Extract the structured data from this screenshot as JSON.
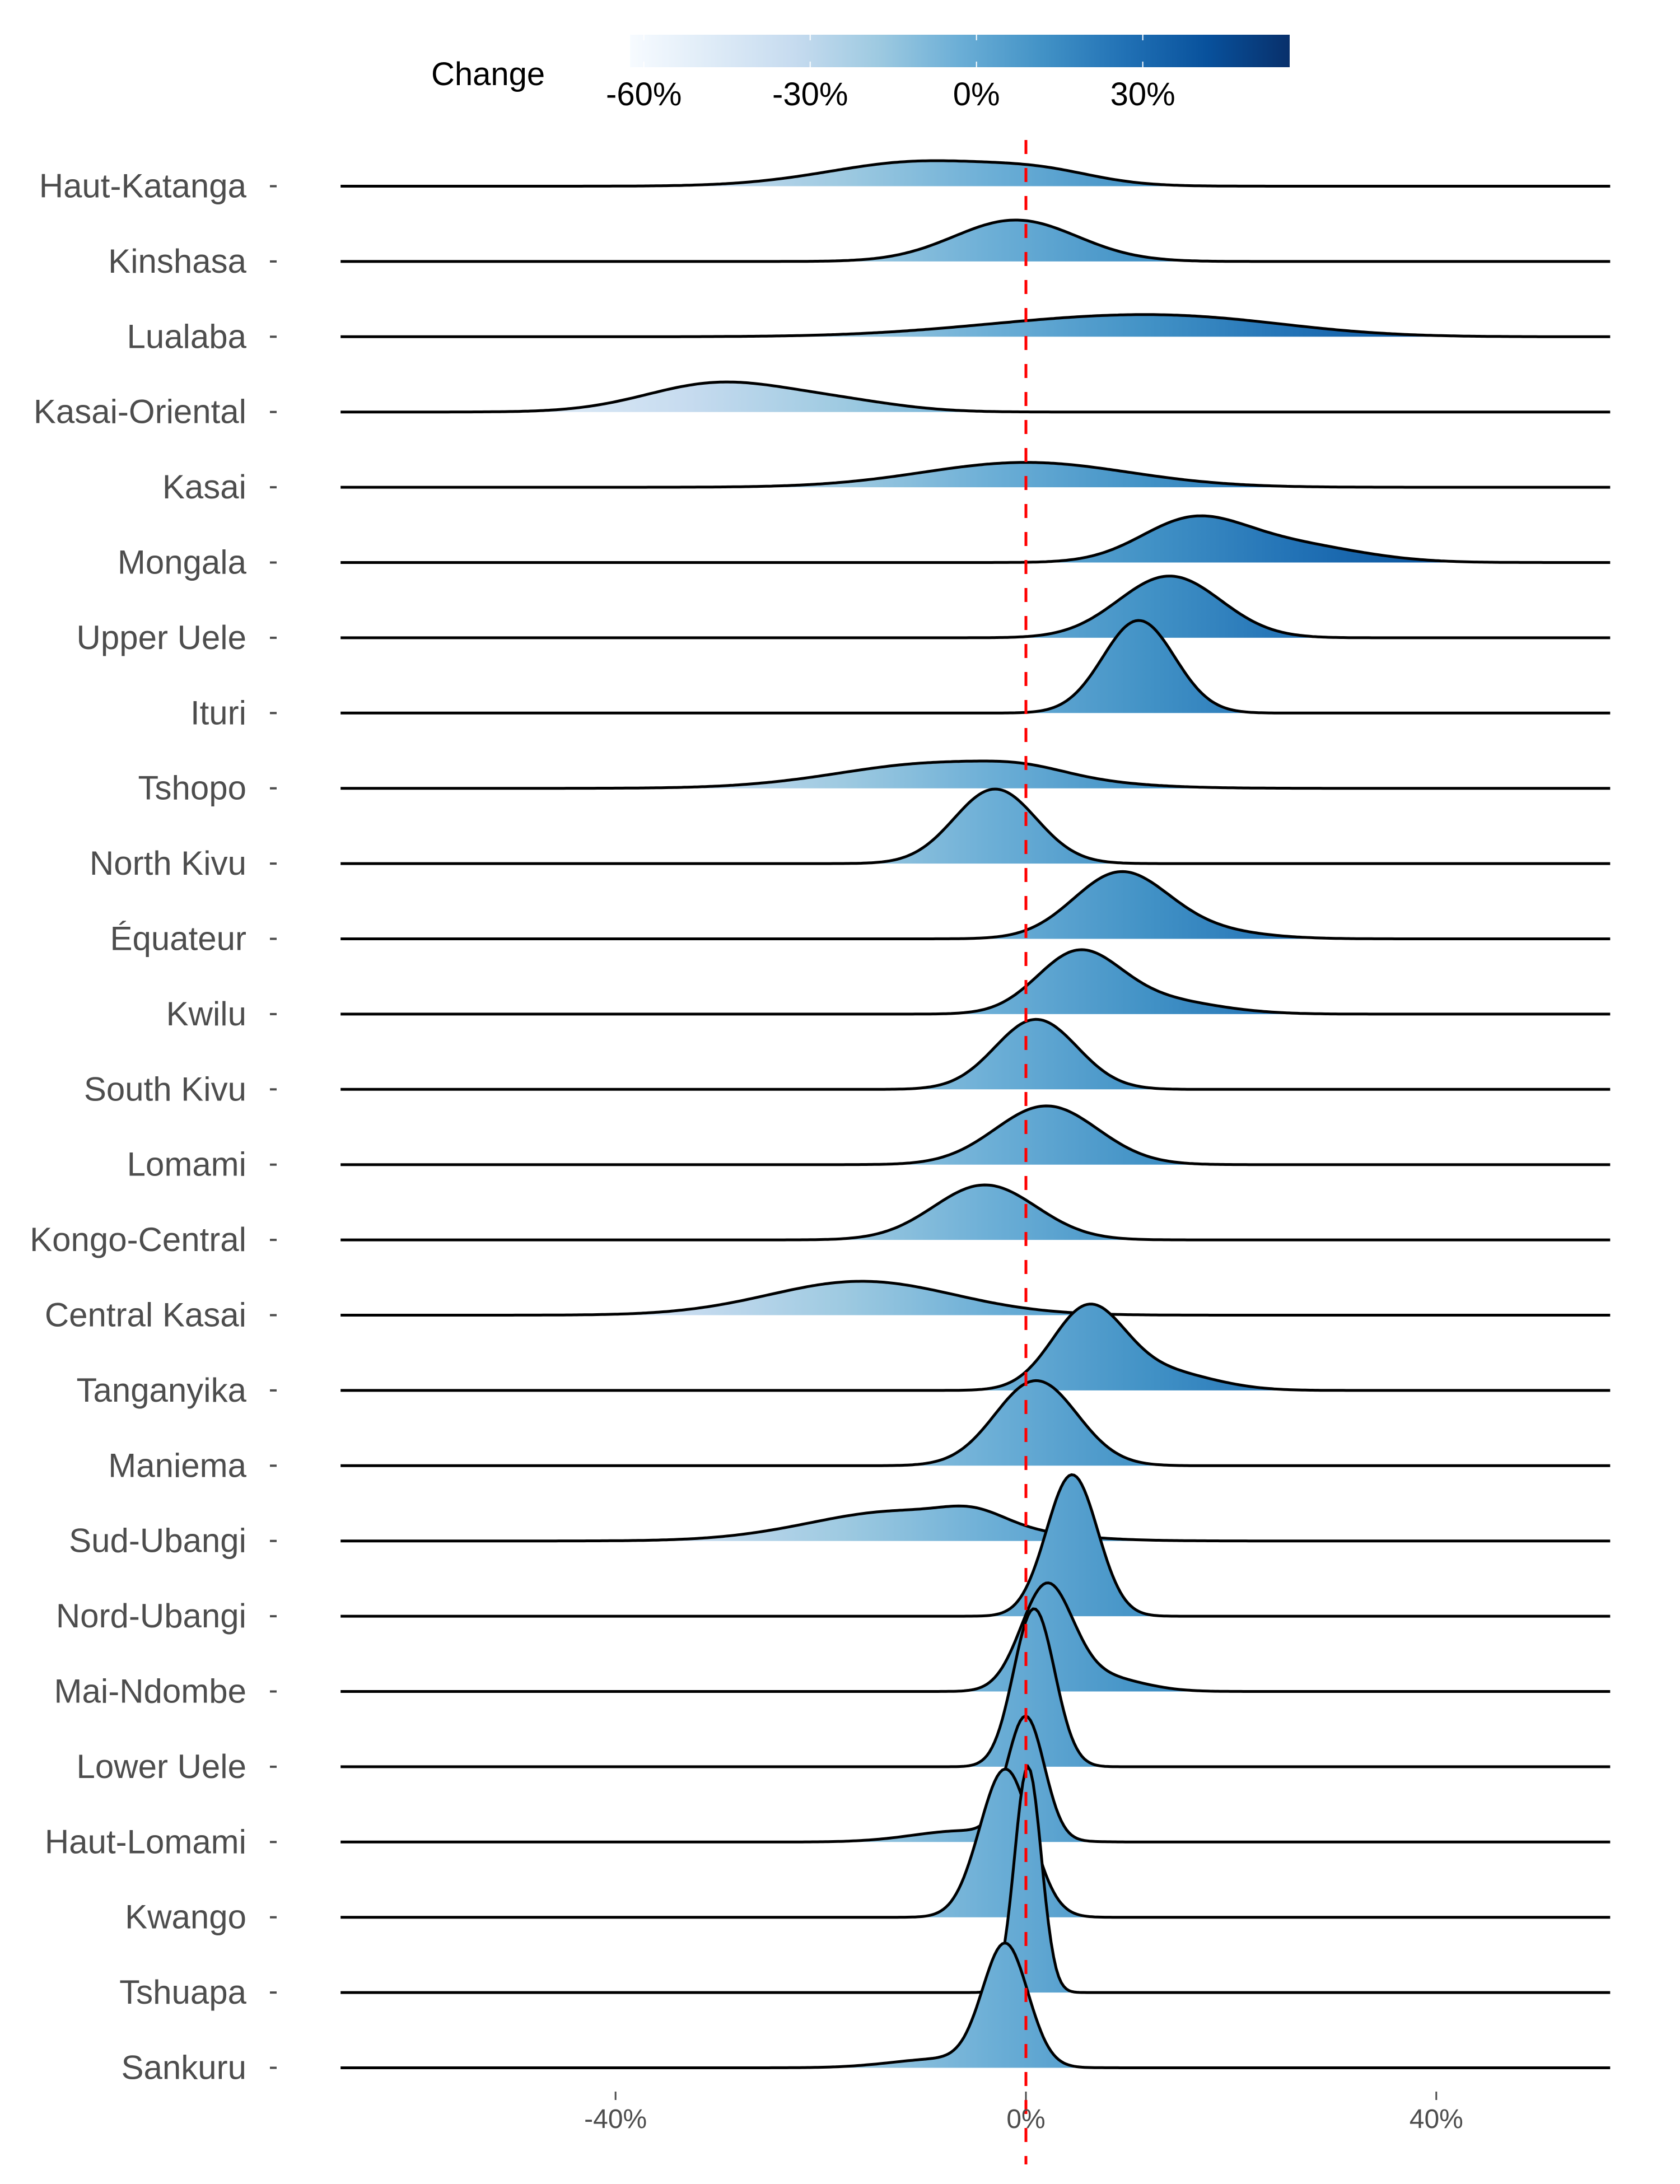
{
  "chart_data": {
    "type": "ridgeline",
    "title": "",
    "xlabel": "",
    "ylabel": "",
    "xlim": [
      -66.8,
      57
    ],
    "x_ticks": [
      "-40%",
      "0%",
      "40%"
    ],
    "x_tick_values": [
      -40,
      0,
      40
    ],
    "reference_line": {
      "x": 0,
      "color": "#ff0000",
      "style": "dashed"
    },
    "legend": {
      "title": "Change",
      "placement": "top",
      "range": [
        -62.5,
        56.5
      ],
      "ticks": [
        "-60%",
        "-30%",
        "0%",
        "30%"
      ],
      "tick_values": [
        -60,
        -30,
        0,
        30
      ],
      "colors": [
        "#f7fbff",
        "#deebf7",
        "#c6dbef",
        "#9ecae1",
        "#6baed6",
        "#4292c6",
        "#2171b5",
        "#08519c",
        "#08306b"
      ]
    },
    "series_note": "each ridge: mixture components [mean %, sd %, peak height in row units]",
    "series": [
      {
        "name": "Haut-Katanga",
        "components": [
          [
            -10,
            9,
            0.33
          ],
          [
            2,
            5,
            0.12
          ]
        ]
      },
      {
        "name": "Kinshasa",
        "components": [
          [
            -1,
            6,
            0.55
          ]
        ]
      },
      {
        "name": "Lualaba",
        "components": [
          [
            5,
            12,
            0.2
          ],
          [
            18,
            10,
            0.15
          ]
        ]
      },
      {
        "name": "Kasai-Oriental",
        "components": [
          [
            -30,
            7,
            0.38
          ],
          [
            -18,
            6,
            0.12
          ]
        ]
      },
      {
        "name": "Kasai",
        "components": [
          [
            0,
            10,
            0.33
          ]
        ]
      },
      {
        "name": "Mongala",
        "components": [
          [
            16,
            5,
            0.5
          ],
          [
            25,
            7,
            0.25
          ]
        ]
      },
      {
        "name": "Upper Uele",
        "components": [
          [
            14,
            5,
            0.82
          ]
        ]
      },
      {
        "name": "Ituri",
        "components": [
          [
            11,
            3.5,
            1.23
          ]
        ]
      },
      {
        "name": "Tshopo",
        "components": [
          [
            -8,
            10,
            0.34
          ],
          [
            0,
            4,
            0.08
          ]
        ]
      },
      {
        "name": "North Kivu",
        "components": [
          [
            -3,
            4,
            0.99
          ]
        ]
      },
      {
        "name": "Équateur",
        "components": [
          [
            9,
            4.5,
            0.8
          ],
          [
            15,
            6,
            0.15
          ]
        ]
      },
      {
        "name": "Kwilu",
        "components": [
          [
            5,
            4,
            0.75
          ],
          [
            12,
            6,
            0.2
          ]
        ]
      },
      {
        "name": "South Kivu",
        "components": [
          [
            1,
            4,
            0.93
          ]
        ]
      },
      {
        "name": "Lomami",
        "components": [
          [
            2,
            5,
            0.78
          ]
        ]
      },
      {
        "name": "Kongo-Central",
        "components": [
          [
            -4,
            5,
            0.73
          ]
        ]
      },
      {
        "name": "Central Kasai",
        "components": [
          [
            -16,
            9,
            0.45
          ]
        ]
      },
      {
        "name": "Tanganyika",
        "components": [
          [
            6,
            3.5,
            1.05
          ],
          [
            13,
            5,
            0.25
          ]
        ]
      },
      {
        "name": "Maniema",
        "components": [
          [
            1,
            4,
            1.13
          ]
        ]
      },
      {
        "name": "Sud-Ubangi",
        "components": [
          [
            -12,
            9,
            0.4
          ],
          [
            -5,
            3,
            0.15
          ]
        ]
      },
      {
        "name": "Nord-Ubangi",
        "components": [
          [
            4.5,
            2.5,
            1.88
          ]
        ]
      },
      {
        "name": "Mai-Ndombe",
        "components": [
          [
            2,
            2.5,
            1.35
          ],
          [
            7,
            4,
            0.2
          ]
        ]
      },
      {
        "name": "Lower Uele",
        "components": [
          [
            0.8,
            2,
            2.1
          ]
        ]
      },
      {
        "name": "Haut-Lomami",
        "components": [
          [
            0,
            1.8,
            1.6
          ],
          [
            -6,
            5,
            0.15
          ]
        ]
      },
      {
        "name": "Kwango",
        "components": [
          [
            -2,
            2.5,
            1.97
          ]
        ]
      },
      {
        "name": "Tshuapa",
        "components": [
          [
            0.2,
            1.3,
            3.0
          ]
        ]
      },
      {
        "name": "Sankuru",
        "components": [
          [
            -2,
            2.2,
            1.6
          ],
          [
            -8,
            5,
            0.12
          ]
        ]
      }
    ]
  }
}
